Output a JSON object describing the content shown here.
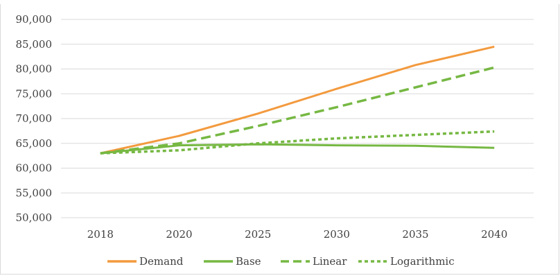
{
  "chart_data": {
    "type": "line",
    "title": "",
    "xlabel": "",
    "ylabel": "",
    "categories": [
      "2018",
      "2020",
      "2025",
      "2030",
      "2035",
      "2040"
    ],
    "ylim": [
      50000,
      90000
    ],
    "ytick_step": 5000,
    "ytick_labels": [
      "50,000",
      "55,000",
      "60,000",
      "65,000",
      "70,000",
      "75,000",
      "80,000",
      "85,000",
      "90,000"
    ],
    "grid": true,
    "legend_position": "bottom",
    "series": [
      {
        "name": "Demand",
        "values": [
          63000,
          66500,
          71000,
          76000,
          80800,
          84500
        ],
        "color": "#f39a3e",
        "style": "solid"
      },
      {
        "name": "Base",
        "values": [
          63000,
          64600,
          64800,
          64600,
          64500,
          64100
        ],
        "color": "#76b843",
        "style": "solid"
      },
      {
        "name": "Linear",
        "values": [
          63000,
          65000,
          68500,
          72300,
          76300,
          80300
        ],
        "color": "#76b843",
        "style": "dashed"
      },
      {
        "name": "Logarithmic",
        "values": [
          63000,
          63600,
          65000,
          66000,
          66700,
          67400
        ],
        "color": "#76b843",
        "style": "dotted"
      }
    ]
  }
}
